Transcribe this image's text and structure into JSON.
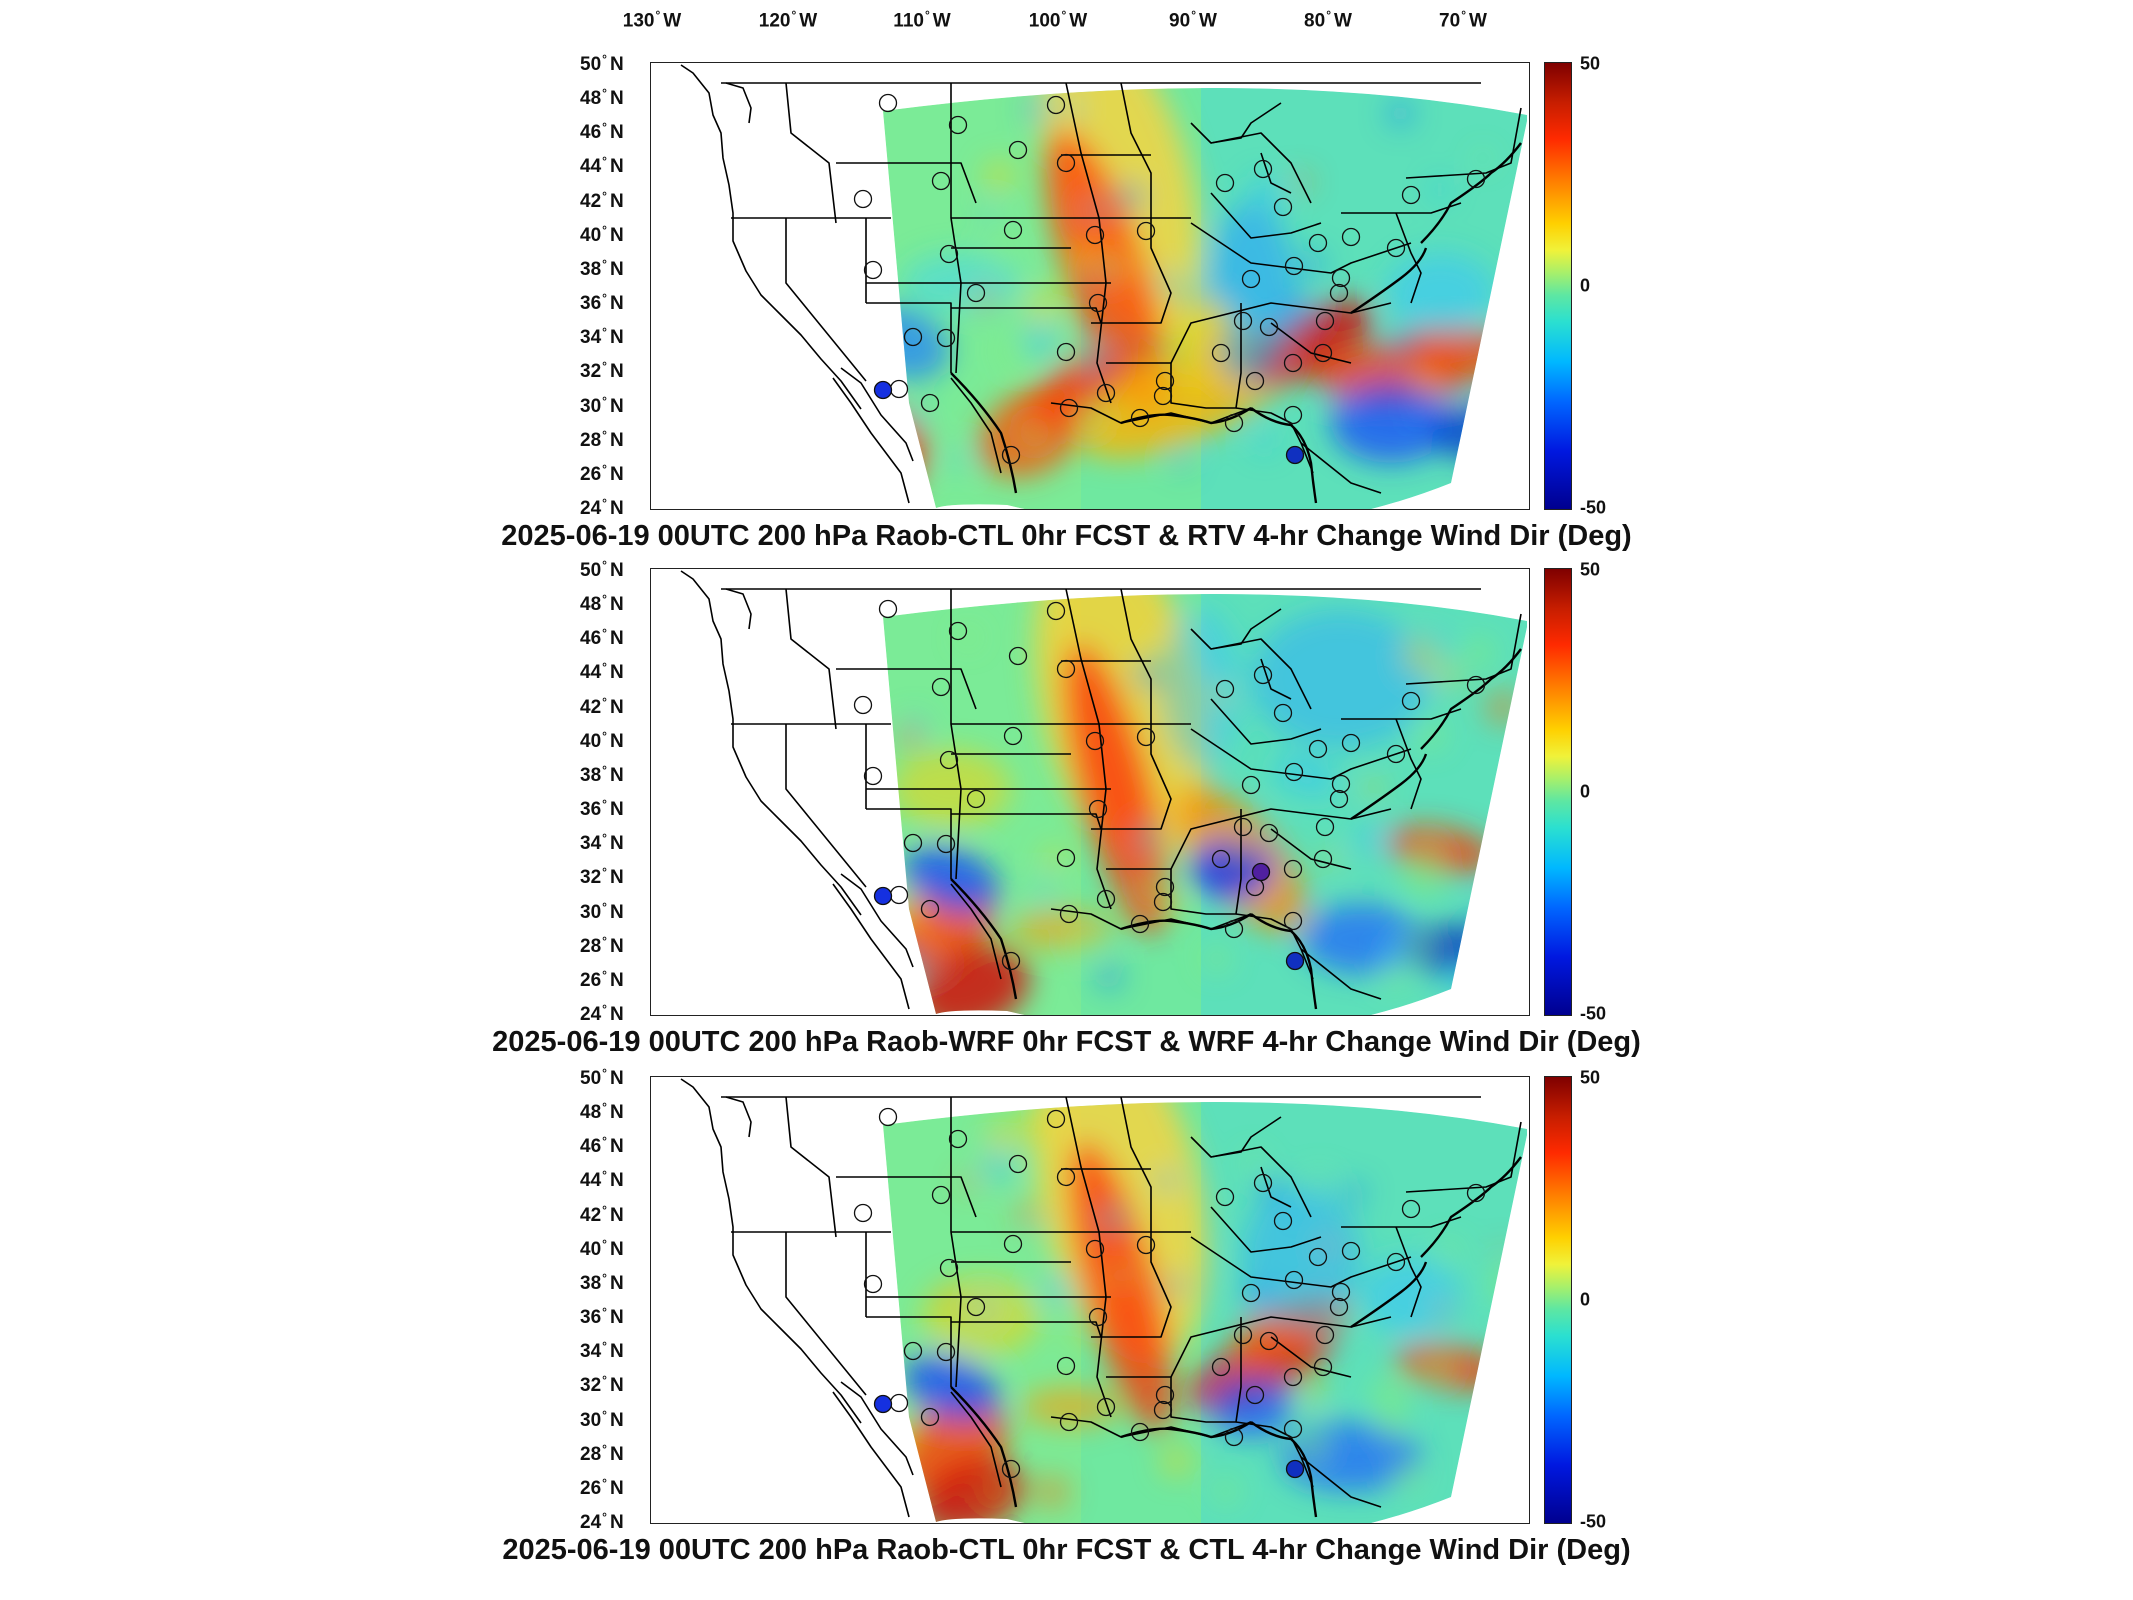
{
  "longitude_labels": [
    {
      "value": "130",
      "hem": "W"
    },
    {
      "value": "120",
      "hem": "W"
    },
    {
      "value": "110",
      "hem": "W"
    },
    {
      "value": "100",
      "hem": "W"
    },
    {
      "value": "90",
      "hem": "W"
    },
    {
      "value": "80",
      "hem": "W"
    },
    {
      "value": "70",
      "hem": "W"
    }
  ],
  "latitude_labels": [
    {
      "value": "50",
      "hem": "N"
    },
    {
      "value": "48",
      "hem": "N"
    },
    {
      "value": "46",
      "hem": "N"
    },
    {
      "value": "44",
      "hem": "N"
    },
    {
      "value": "42",
      "hem": "N"
    },
    {
      "value": "40",
      "hem": "N"
    },
    {
      "value": "38",
      "hem": "N"
    },
    {
      "value": "36",
      "hem": "N"
    },
    {
      "value": "34",
      "hem": "N"
    },
    {
      "value": "32",
      "hem": "N"
    },
    {
      "value": "30",
      "hem": "N"
    },
    {
      "value": "28",
      "hem": "N"
    },
    {
      "value": "26",
      "hem": "N"
    },
    {
      "value": "24",
      "hem": "N"
    }
  ],
  "colorbar": {
    "max": "50",
    "mid": "0",
    "min": "-50"
  },
  "panels": [
    {
      "id": "rtv",
      "title": "2025-06-19 00UTC 200 hPa Raob-CTL 0hr FCST & RTV 4-hr Change Wind Dir (Deg)"
    },
    {
      "id": "wrf",
      "title": "2025-06-19 00UTC 200 hPa Raob-WRF 0hr FCST & WRF 4-hr Change Wind Dir (Deg)"
    },
    {
      "id": "ctl",
      "title": "2025-06-19 00UTC 200 hPa Raob-CTL 0hr FCST & CTL 4-hr Change Wind Dir (Deg)"
    }
  ]
}
